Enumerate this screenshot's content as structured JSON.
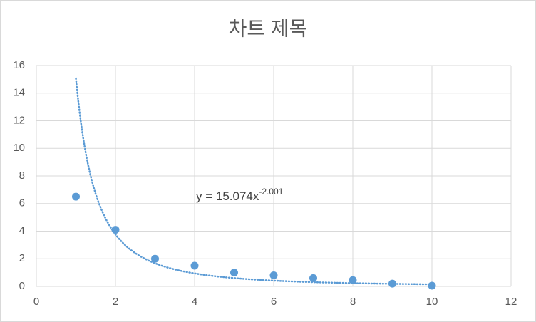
{
  "chart_data": {
    "type": "scatter",
    "title": "차트 제목",
    "x": [
      1,
      2,
      3,
      4,
      5,
      6,
      7,
      8,
      9,
      10
    ],
    "values": [
      6.5,
      4.1,
      2.0,
      1.5,
      1.0,
      0.8,
      0.6,
      0.45,
      0.2,
      0.05
    ],
    "color": "#5b9bd5",
    "xlim": [
      0,
      12
    ],
    "xticks": [
      0,
      2,
      4,
      6,
      8,
      10,
      12
    ],
    "ylim": [
      0,
      16
    ],
    "yticks": [
      0,
      2,
      4,
      6,
      8,
      10,
      12,
      14,
      16
    ],
    "grid": true,
    "trendline": {
      "kind": "power",
      "coefficient": 15.074,
      "exponent": -2.001,
      "equation": "y = 15.074x",
      "exponent_label": "-2.001"
    }
  }
}
